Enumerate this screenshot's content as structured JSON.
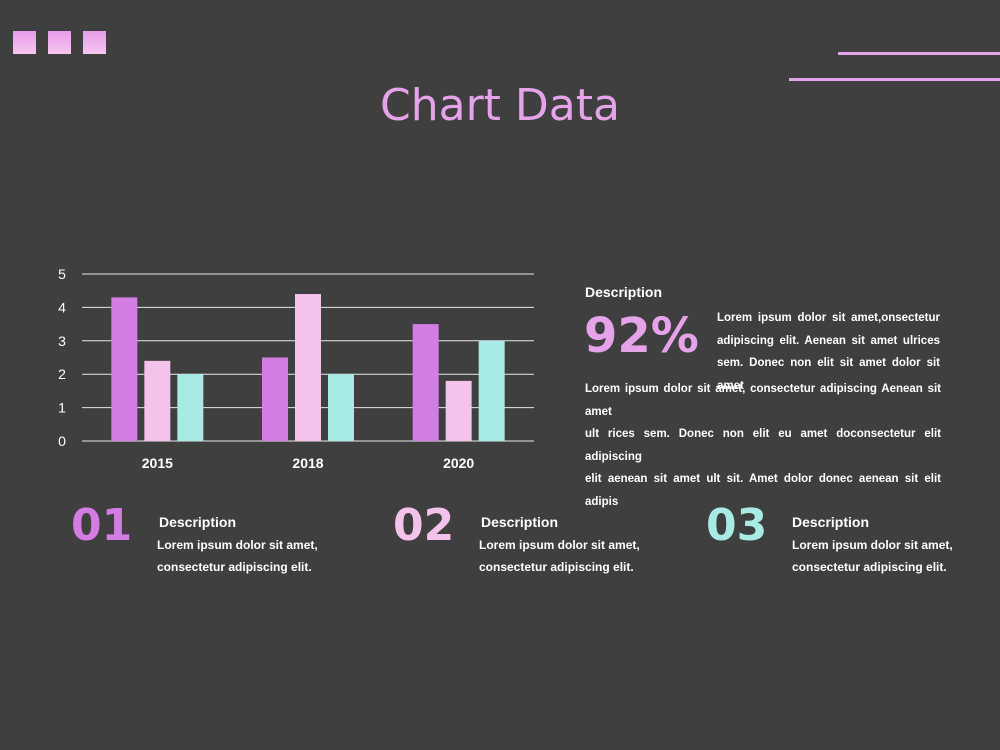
{
  "title": "Chart Data",
  "colors": {
    "background": "#3f3f3f",
    "accent_purple": "#d37ce3",
    "accent_pink": "#f5c2ec",
    "accent_teal": "#a7ebe4",
    "title": "#e6a3ea"
  },
  "chart_data": {
    "type": "bar",
    "categories": [
      "2015",
      "2018",
      "2020"
    ],
    "series": [
      {
        "values": [
          4.3,
          2.5,
          3.5
        ],
        "color": "#d37ce3"
      },
      {
        "values": [
          2.4,
          4.4,
          1.8
        ],
        "color": "#f5c2ec"
      },
      {
        "values": [
          2.0,
          2.0,
          3.0
        ],
        "color": "#a7ebe4"
      }
    ],
    "yticks": [
      "0",
      "1",
      "2",
      "3",
      "4",
      "5"
    ],
    "ylim": [
      0,
      5
    ],
    "grid": true
  },
  "side": {
    "heading": "Description",
    "percent": "92%",
    "short_text": [
      "Lorem ipsum dolor sit amet,onsectetur",
      "adipiscing elit. Aenean sit amet ulrices",
      "sem. Donec non elit sit amet dolor sit amet"
    ],
    "long_text": [
      "Lorem ipsum dolor sit amet, consectetur adipiscing Aenean sit amet",
      "ult rices sem. Donec non elit eu amet doconsectetur elit adipiscing",
      "elit aenean sit amet ult sit. Amet dolor donec aenean sit elit adipis"
    ]
  },
  "items": [
    {
      "number": "01",
      "heading": "Description",
      "line1": "Lorem ipsum dolor sit amet,",
      "line2": "consectetur adipiscing elit.",
      "color": "#d37ce3"
    },
    {
      "number": "02",
      "heading": "Description",
      "line1": "Lorem ipsum dolor sit amet,",
      "line2": "consectetur adipiscing elit.",
      "color": "#f5c2ec"
    },
    {
      "number": "03",
      "heading": "Description",
      "line1": "Lorem ipsum dolor sit amet,",
      "line2": "consectetur adipiscing elit.",
      "color": "#a7ebe4"
    }
  ]
}
